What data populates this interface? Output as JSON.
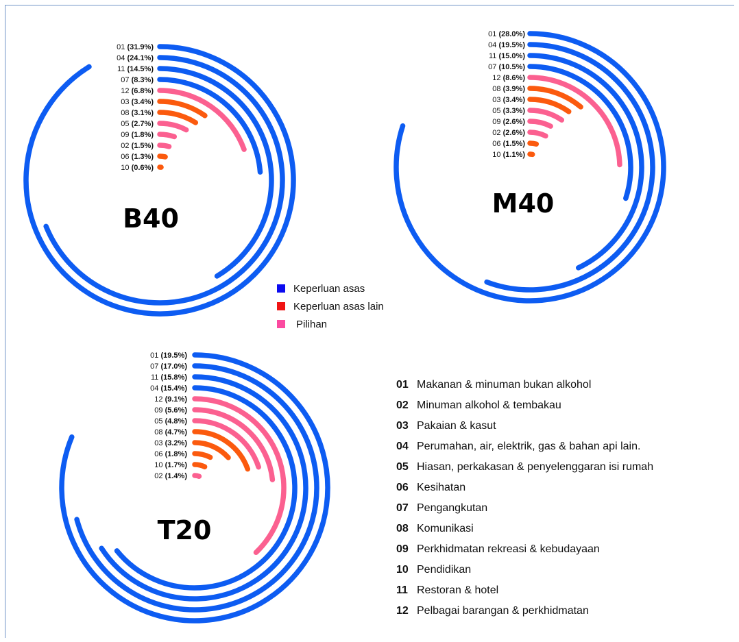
{
  "colors": {
    "basic": "#0d5cf2",
    "other_basic": "#fb5a0e",
    "choice": "#fb6090",
    "legend_basic": "#0b0bf0",
    "legend_other": "#f01414",
    "legend_choice": "#fb4aa0"
  },
  "legend": [
    {
      "label": "Keperluan asas",
      "group": "basic"
    },
    {
      "label": "Keperluan asas lain",
      "group": "other_basic"
    },
    {
      "label": "Pilihan",
      "group": "choice"
    }
  ],
  "categories": [
    {
      "code": "01",
      "name": "Makanan & minuman bukan alkohol"
    },
    {
      "code": "02",
      "name": "Minuman alkohol & tembakau"
    },
    {
      "code": "03",
      "name": "Pakaian & kasut"
    },
    {
      "code": "04",
      "name": "Perumahan, air, elektrik, gas & bahan api lain."
    },
    {
      "code": "05",
      "name": "Hiasan, perkakasan & penyelenggaran isi rumah"
    },
    {
      "code": "06",
      "name": "Kesihatan"
    },
    {
      "code": "07",
      "name": "Pengangkutan"
    },
    {
      "code": "08",
      "name": "Komunikasi"
    },
    {
      "code": "09",
      "name": "Perkhidmatan rekreasi & kebudayaan"
    },
    {
      "code": "10",
      "name": "Pendidikan"
    },
    {
      "code": "11",
      "name": "Restoran & hotel"
    },
    {
      "code": "12",
      "name": "Pelbagai barangan & perkhidmatan"
    }
  ],
  "chart_data": [
    {
      "type": "radial-bar",
      "title": "B40",
      "max_value": 35,
      "rings": [
        {
          "code": "01",
          "label": "(31.9%)",
          "value": 31.9,
          "group": "basic"
        },
        {
          "code": "04",
          "label": "(24.1%)",
          "value": 24.1,
          "group": "basic"
        },
        {
          "code": "11",
          "label": "(14.5%)",
          "value": 14.5,
          "group": "basic"
        },
        {
          "code": "07",
          "label": "(8.3%)",
          "value": 8.3,
          "group": "basic"
        },
        {
          "code": "12",
          "label": "(6.8%)",
          "value": 6.8,
          "group": "choice"
        },
        {
          "code": "03",
          "label": "(3.4%)",
          "value": 3.4,
          "group": "other_basic"
        },
        {
          "code": "08",
          "label": "(3.1%)",
          "value": 3.1,
          "group": "other_basic"
        },
        {
          "code": "05",
          "label": "(2.7%)",
          "value": 2.7,
          "group": "choice"
        },
        {
          "code": "09",
          "label": "(1.8%)",
          "value": 1.8,
          "group": "choice"
        },
        {
          "code": "02",
          "label": "(1.5%)",
          "value": 1.5,
          "group": "choice"
        },
        {
          "code": "06",
          "label": "(1.3%)",
          "value": 1.3,
          "group": "other_basic"
        },
        {
          "code": "10",
          "label": "(0.6%)",
          "value": 0.6,
          "group": "other_basic"
        }
      ]
    },
    {
      "type": "radial-bar",
      "title": "M40",
      "max_value": 35,
      "rings": [
        {
          "code": "01",
          "label": "(28.0%)",
          "value": 28.0,
          "group": "basic"
        },
        {
          "code": "04",
          "label": "(19.5%)",
          "value": 19.5,
          "group": "basic"
        },
        {
          "code": "11",
          "label": "(15.0%)",
          "value": 15.0,
          "group": "basic"
        },
        {
          "code": "07",
          "label": "(10.5%)",
          "value": 10.5,
          "group": "basic"
        },
        {
          "code": "12",
          "label": "(8.6%)",
          "value": 8.6,
          "group": "choice"
        },
        {
          "code": "08",
          "label": "(3.9%)",
          "value": 3.9,
          "group": "other_basic"
        },
        {
          "code": "03",
          "label": "(3.4%)",
          "value": 3.4,
          "group": "other_basic"
        },
        {
          "code": "05",
          "label": "(3.3%)",
          "value": 3.3,
          "group": "choice"
        },
        {
          "code": "09",
          "label": "(2.6%)",
          "value": 2.6,
          "group": "choice"
        },
        {
          "code": "02",
          "label": "(2.6%)",
          "value": 2.6,
          "group": "choice"
        },
        {
          "code": "06",
          "label": "(1.5%)",
          "value": 1.5,
          "group": "other_basic"
        },
        {
          "code": "10",
          "label": "(1.1%)",
          "value": 1.1,
          "group": "other_basic"
        }
      ]
    },
    {
      "type": "radial-bar",
      "title": "T20",
      "max_value": 24,
      "rings": [
        {
          "code": "01",
          "label": "(19.5%)",
          "value": 19.5,
          "group": "basic"
        },
        {
          "code": "07",
          "label": "(17.0%)",
          "value": 17.0,
          "group": "basic"
        },
        {
          "code": "11",
          "label": "(15.8%)",
          "value": 15.8,
          "group": "basic"
        },
        {
          "code": "04",
          "label": "(15.4%)",
          "value": 15.4,
          "group": "basic"
        },
        {
          "code": "12",
          "label": "(9.1%)",
          "value": 9.1,
          "group": "choice"
        },
        {
          "code": "09",
          "label": "(5.6%)",
          "value": 5.6,
          "group": "choice"
        },
        {
          "code": "05",
          "label": "(4.8%)",
          "value": 4.8,
          "group": "choice"
        },
        {
          "code": "08",
          "label": "(4.7%)",
          "value": 4.7,
          "group": "other_basic"
        },
        {
          "code": "03",
          "label": "(3.2%)",
          "value": 3.2,
          "group": "other_basic"
        },
        {
          "code": "06",
          "label": "(1.8%)",
          "value": 1.8,
          "group": "other_basic"
        },
        {
          "code": "10",
          "label": "(1.7%)",
          "value": 1.7,
          "group": "other_basic"
        },
        {
          "code": "02",
          "label": "(1.4%)",
          "value": 1.4,
          "group": "choice"
        }
      ]
    }
  ]
}
